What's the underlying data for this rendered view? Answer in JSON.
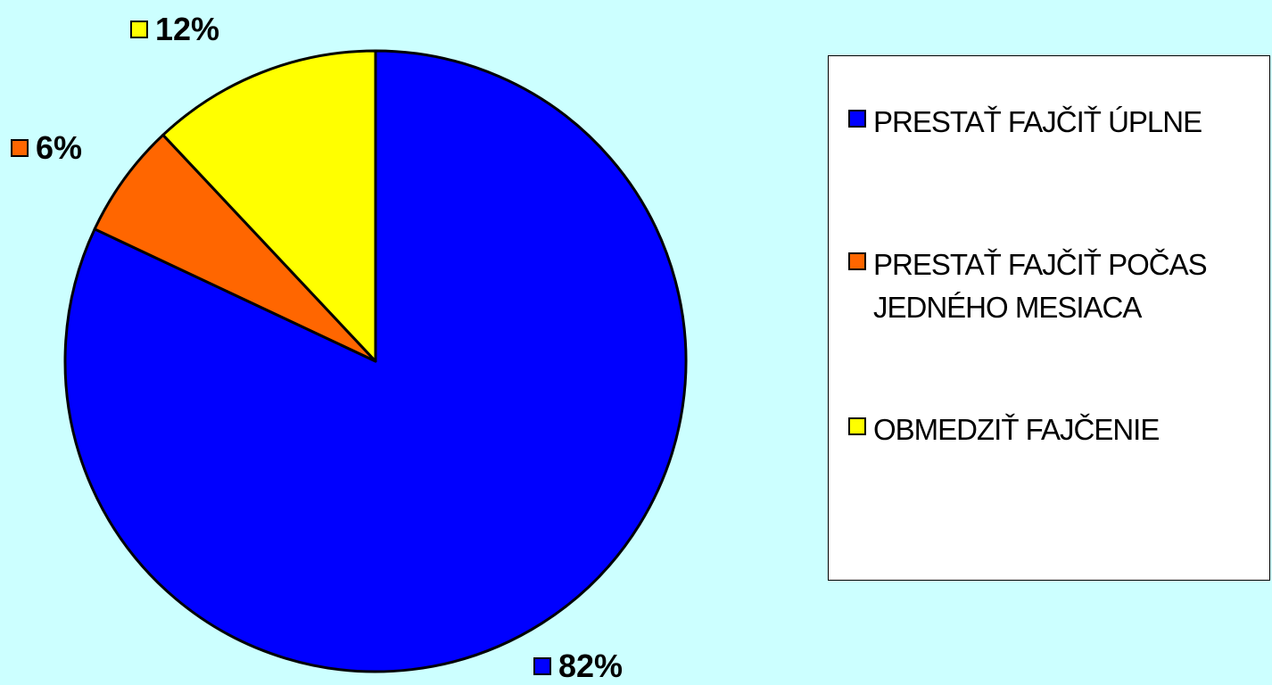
{
  "chart_data": {
    "type": "pie",
    "title": "",
    "categories": [
      "PRESTAŤ FAJČIŤ ÚPLNE",
      "PRESTAŤ FAJČIŤ POČAS JEDNÉHO MESIACA",
      "OBMEDZIŤ FAJČENIE"
    ],
    "values": [
      82,
      6,
      12
    ],
    "value_labels": [
      "82%",
      "6%",
      "12%"
    ],
    "colors": [
      "#0000FF",
      "#FF6600",
      "#FFFF00"
    ],
    "legend_placement": "right",
    "background": "#CCFFFF"
  },
  "legend": {
    "items": [
      {
        "label": "PRESTAŤ FAJČIŤ ÚPLNE",
        "color": "#0000FF"
      },
      {
        "label": "PRESTAŤ FAJČIŤ POČAS JEDNÉHO MESIACA",
        "color": "#FF6600"
      },
      {
        "label": "OBMEDZIŤ FAJČENIE",
        "color": "#FFFF00"
      }
    ]
  }
}
